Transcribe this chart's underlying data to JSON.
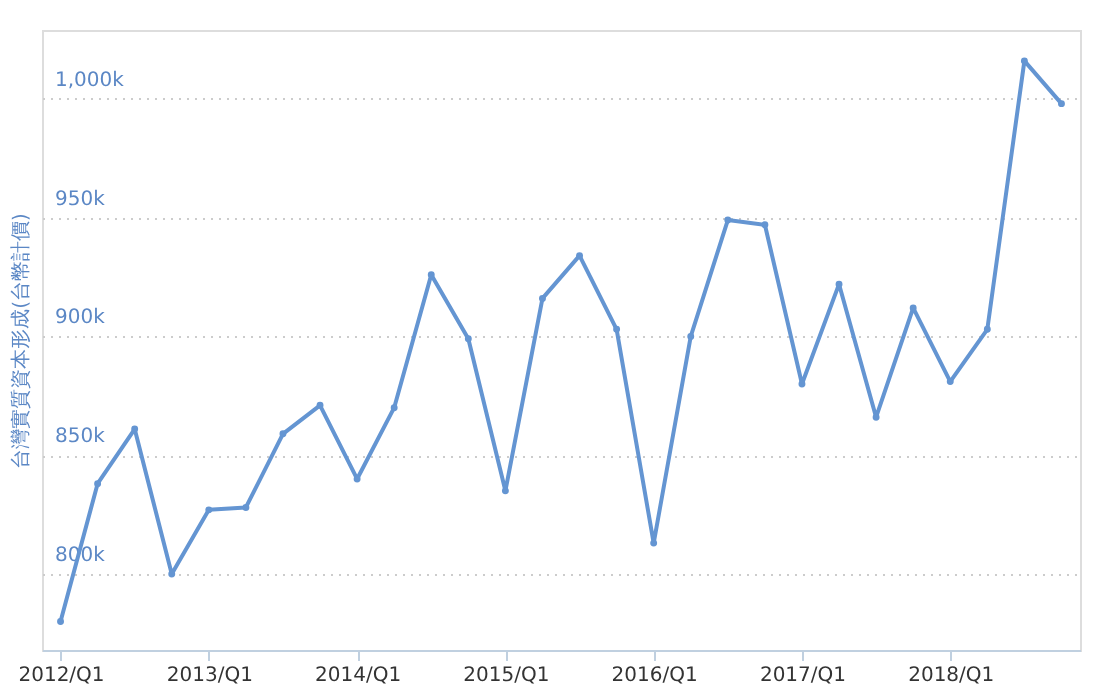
{
  "chart_data": {
    "type": "line",
    "ylabel": "台灣實質資本形成(台幣計價)",
    "categories": [
      "2012/Q1",
      null,
      null,
      null,
      "2013/Q1",
      null,
      null,
      null,
      "2014/Q1",
      null,
      null,
      null,
      "2015/Q1",
      null,
      null,
      null,
      "2016/Q1",
      null,
      null,
      null,
      "2017/Q1",
      null,
      null,
      null,
      "2018/Q1",
      null,
      null,
      null
    ],
    "series": [
      {
        "color": "#6495d2",
        "values": [
          780,
          838,
          861,
          800,
          827,
          828,
          859,
          871,
          840,
          870,
          926,
          899,
          835,
          916,
          934,
          903,
          813,
          900,
          949,
          947,
          880,
          922,
          866,
          912,
          881,
          903,
          1016,
          998
        ]
      }
    ],
    "ylim": [
      768,
      1029
    ],
    "yticks": [
      {
        "value": 800,
        "label": "800k"
      },
      {
        "value": 850,
        "label": "850k"
      },
      {
        "value": 900,
        "label": "900k"
      },
      {
        "value": 950,
        "label": "950k"
      },
      {
        "value": 1000,
        "label": "1,000k"
      }
    ],
    "grid": "y",
    "marker": "circle",
    "line_style": "solid"
  }
}
